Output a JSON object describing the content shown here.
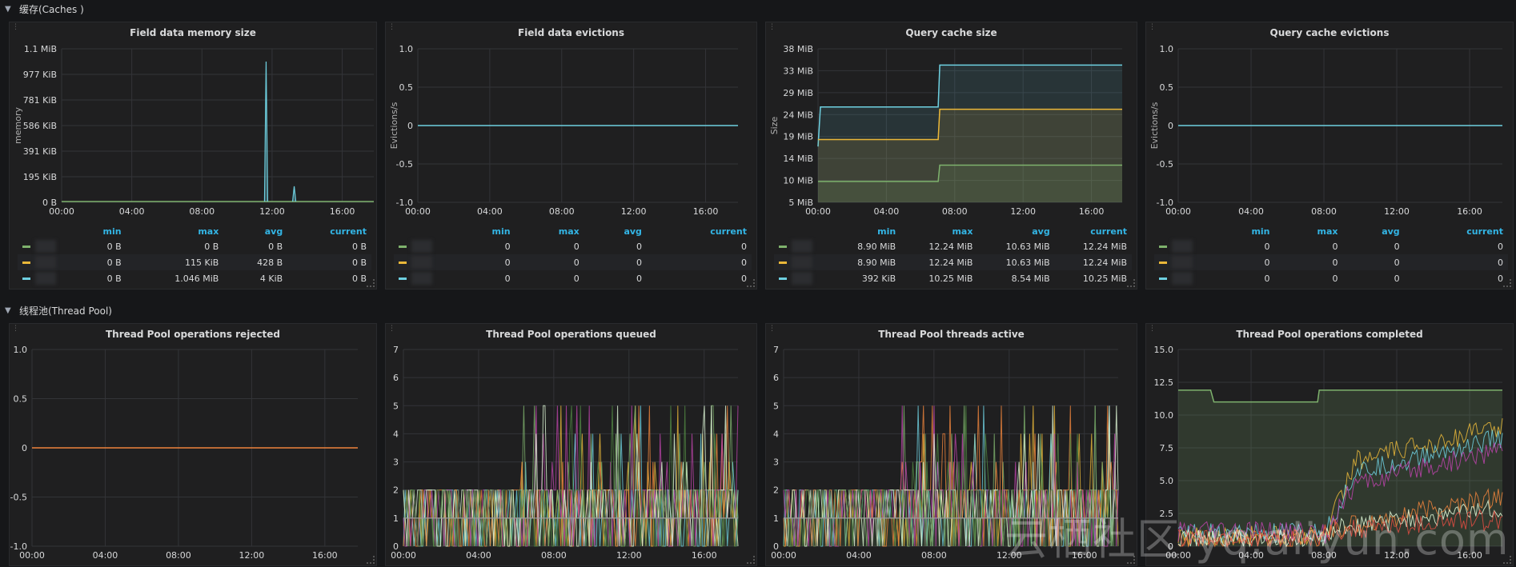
{
  "rows": [
    {
      "title": "缓存(Caches )"
    },
    {
      "title": "线程池(Thread Pool)"
    }
  ],
  "colors": {
    "green": "#7eb26d",
    "yellow": "#eab839",
    "cyan": "#6ed0e0",
    "orange": "#ef843c",
    "red": "#e24d42",
    "blue": "#1f78c1",
    "purple": "#ba43a9",
    "olive": "#705da0"
  },
  "panels": [
    {
      "title": "Field data memory size",
      "ylabel": "memory",
      "yticks": [
        "1.1 MiB",
        "977 KiB",
        "781 KiB",
        "586 KiB",
        "391 KiB",
        "195 KiB",
        "0 B"
      ],
      "xticks": [
        "00:00",
        "04:00",
        "08:00",
        "12:00",
        "16:00"
      ],
      "legend": {
        "headers": [
          "min",
          "max",
          "avg",
          "current"
        ],
        "rows": [
          {
            "color": "#7eb26d",
            "values": [
              "0 B",
              "0 B",
              "0 B",
              "0 B"
            ]
          },
          {
            "color": "#eab839",
            "values": [
              "0 B",
              "115 KiB",
              "428 B",
              "0 B"
            ]
          },
          {
            "color": "#6ed0e0",
            "values": [
              "0 B",
              "1.046 MiB",
              "4 KiB",
              "0 B"
            ]
          }
        ]
      }
    },
    {
      "title": "Field data evictions",
      "ylabel": "Evictions/s",
      "yticks": [
        "1.0",
        "0.5",
        "0",
        "-0.5",
        "-1.0"
      ],
      "xticks": [
        "00:00",
        "04:00",
        "08:00",
        "12:00",
        "16:00"
      ],
      "legend": {
        "headers": [
          "min",
          "max",
          "avg",
          "current"
        ],
        "rows": [
          {
            "color": "#7eb26d",
            "values": [
              "0",
              "0",
              "0",
              "0"
            ]
          },
          {
            "color": "#eab839",
            "values": [
              "0",
              "0",
              "0",
              "0"
            ]
          },
          {
            "color": "#6ed0e0",
            "values": [
              "0",
              "0",
              "0",
              "0"
            ]
          }
        ]
      }
    },
    {
      "title": "Query cache size",
      "ylabel": "Size",
      "yticks": [
        "38 MiB",
        "33 MiB",
        "29 MiB",
        "24 MiB",
        "19 MiB",
        "14 MiB",
        "10 MiB",
        "5 MiB"
      ],
      "xticks": [
        "00:00",
        "04:00",
        "08:00",
        "12:00",
        "16:00"
      ],
      "legend": {
        "headers": [
          "min",
          "max",
          "avg",
          "current"
        ],
        "rows": [
          {
            "color": "#7eb26d",
            "values": [
              "8.90 MiB",
              "12.24 MiB",
              "10.63 MiB",
              "12.24 MiB"
            ]
          },
          {
            "color": "#eab839",
            "values": [
              "8.90 MiB",
              "12.24 MiB",
              "10.63 MiB",
              "12.24 MiB"
            ]
          },
          {
            "color": "#6ed0e0",
            "values": [
              "392 KiB",
              "10.25 MiB",
              "8.54 MiB",
              "10.25 MiB"
            ]
          }
        ]
      }
    },
    {
      "title": "Query cache evictions",
      "ylabel": "Evictions/s",
      "yticks": [
        "1.0",
        "0.5",
        "0",
        "-0.5",
        "-1.0"
      ],
      "xticks": [
        "00:00",
        "04:00",
        "08:00",
        "12:00",
        "16:00"
      ],
      "legend": {
        "headers": [
          "min",
          "max",
          "avg",
          "current"
        ],
        "rows": [
          {
            "color": "#7eb26d",
            "values": [
              "0",
              "0",
              "0",
              "0"
            ]
          },
          {
            "color": "#eab839",
            "values": [
              "0",
              "0",
              "0",
              "0"
            ]
          },
          {
            "color": "#6ed0e0",
            "values": [
              "0",
              "0",
              "0",
              "0"
            ]
          }
        ]
      }
    },
    {
      "title": "Thread Pool operations rejected",
      "ylabel": "",
      "yticks": [
        "1.0",
        "0.5",
        "0",
        "-0.5",
        "-1.0"
      ],
      "xticks": [
        "00:00",
        "04:00",
        "08:00",
        "12:00",
        "16:00"
      ]
    },
    {
      "title": "Thread Pool operations queued",
      "ylabel": "",
      "yticks": [
        "7",
        "6",
        "5",
        "4",
        "3",
        "2",
        "1",
        "0"
      ],
      "xticks": [
        "00:00",
        "04:00",
        "08:00",
        "12:00",
        "16:00"
      ]
    },
    {
      "title": "Thread Pool threads active",
      "ylabel": "",
      "yticks": [
        "7",
        "6",
        "5",
        "4",
        "3",
        "2",
        "1",
        "0"
      ],
      "xticks": [
        "00:00",
        "04:00",
        "08:00",
        "12:00",
        "16:00"
      ]
    },
    {
      "title": "Thread Pool operations completed",
      "ylabel": "",
      "yticks": [
        "15.0",
        "12.5",
        "10.0",
        "7.5",
        "5.0",
        "2.5",
        "0"
      ],
      "xticks": [
        "00:00",
        "04:00",
        "08:00",
        "12:00",
        "16:00"
      ]
    }
  ],
  "watermark": "云栖社区 yq.aliyun.com"
}
